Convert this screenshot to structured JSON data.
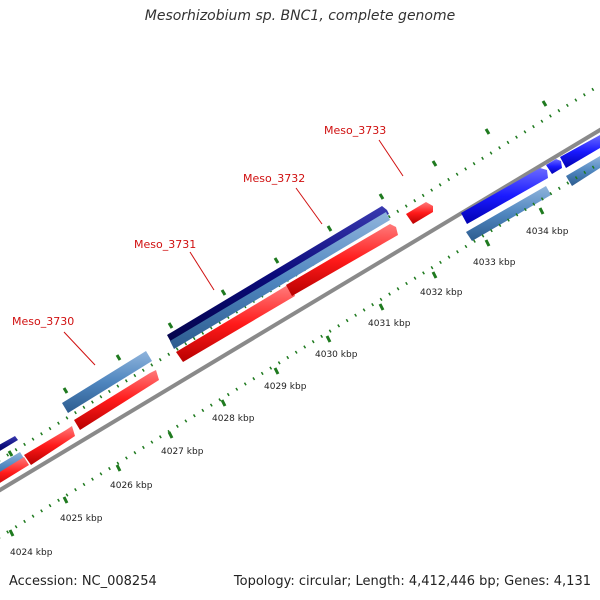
{
  "title": "Mesorhizobium sp. BNC1, complete genome",
  "footer": {
    "accession": "Accession: NC_008254",
    "summary": "Topology: circular; Length: 4,412,446 bp; Genes: 4,131"
  },
  "colors": {
    "backbone": "#888888",
    "cds_forward": "#ff2020",
    "cds_dark": "#0a0a7a",
    "cds_steel": "#4f86bf",
    "cds_blue": "#1a1aff",
    "tick": "#1f7a1f",
    "gene_label": "#d01010",
    "leader": "#d01010"
  },
  "gene_labels": [
    "Meso_3730",
    "Meso_3731",
    "Meso_3732",
    "Meso_3733"
  ],
  "scale_labels": [
    "4024 kbp",
    "4025 kbp",
    "4026 kbp",
    "4027 kbp",
    "4028 kbp",
    "4029 kbp",
    "4030 kbp",
    "4031 kbp",
    "4032 kbp",
    "4033 kbp",
    "4034 kbp"
  ]
}
